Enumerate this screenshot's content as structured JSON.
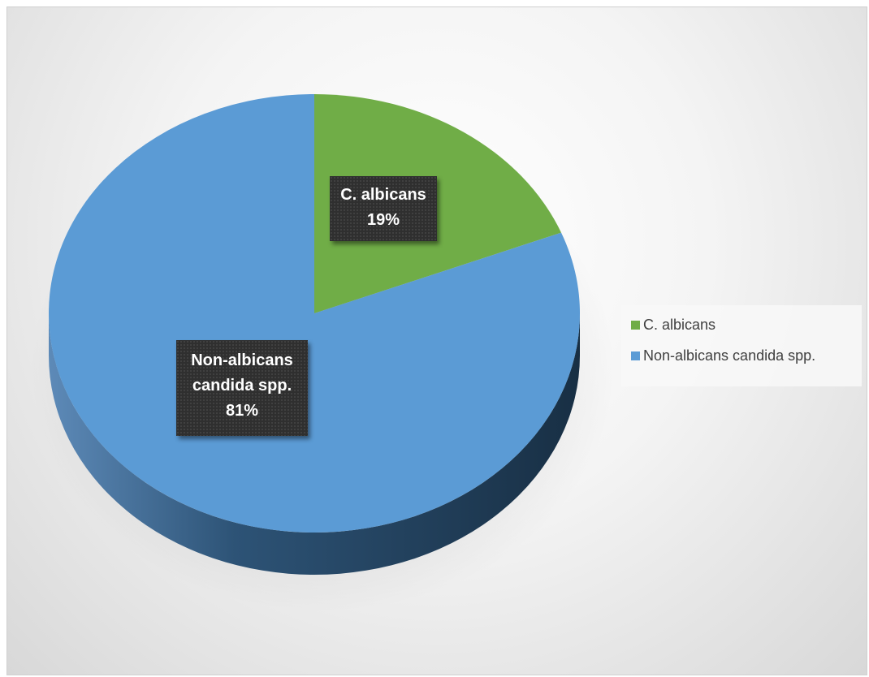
{
  "chart_data": {
    "type": "pie",
    "style": "3d",
    "categories": [
      "C. albicans",
      "Non-albicans candida spp."
    ],
    "values": [
      19,
      81
    ],
    "data_labels": [
      {
        "lines": [
          "C. albicans",
          "19%"
        ]
      },
      {
        "lines": [
          "Non-albicans",
          "candida spp.",
          "81%"
        ]
      }
    ],
    "colors": [
      "#70ad47",
      "#5b9bd5"
    ],
    "legend": {
      "position": "right",
      "entries": [
        "C. albicans",
        "Non-albicans candida spp."
      ]
    }
  }
}
